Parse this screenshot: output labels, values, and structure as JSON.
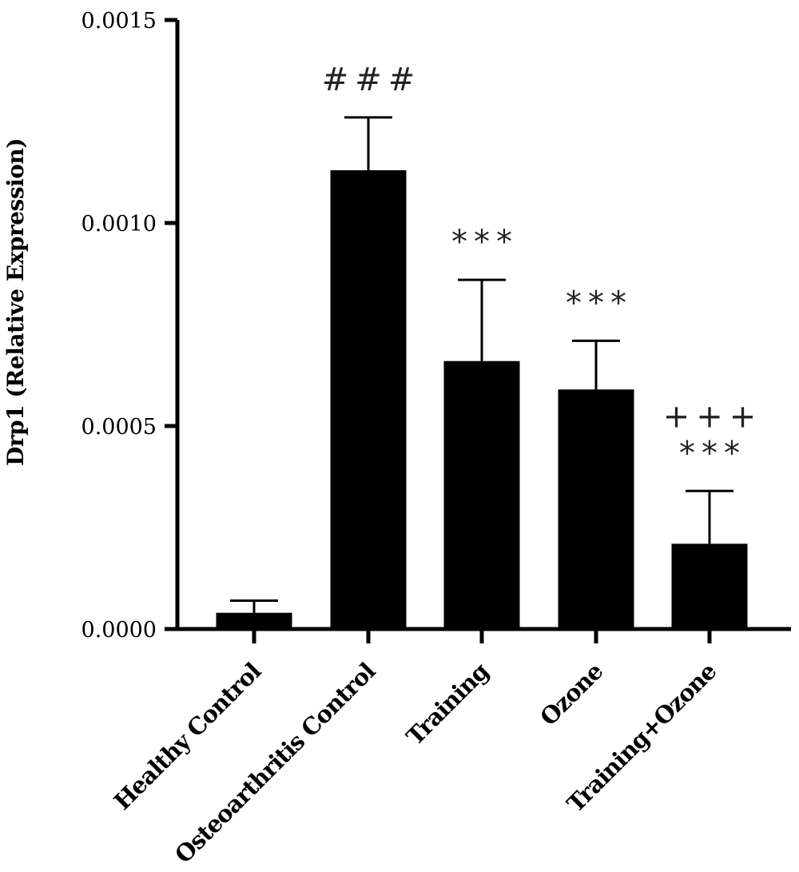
{
  "chart_data": {
    "type": "bar",
    "title": "",
    "xlabel": "",
    "ylabel": "Drp1 (Relative Expression)",
    "ylim": [
      0,
      0.0015
    ],
    "yticks": [
      0.0,
      0.0005,
      0.001,
      0.0015
    ],
    "ytick_labels": [
      "0.0000",
      "0.0005",
      "0.0010",
      "0.0015"
    ],
    "categories": [
      "Healthy Control",
      "Osteoarthritis Control",
      "Training",
      "Ozone",
      "Training+Ozone"
    ],
    "values": [
      4e-05,
      0.00113,
      0.00066,
      0.00059,
      0.00021
    ],
    "error": [
      3e-05,
      0.00013,
      0.0002,
      0.00012,
      0.00013
    ],
    "bar_color": "#000000",
    "annotations": [
      [
        "",
        ""
      ],
      [
        "###",
        ""
      ],
      [
        "***",
        ""
      ],
      [
        "***",
        ""
      ],
      [
        "+++",
        "***"
      ]
    ],
    "grid": false,
    "legend": "none"
  }
}
